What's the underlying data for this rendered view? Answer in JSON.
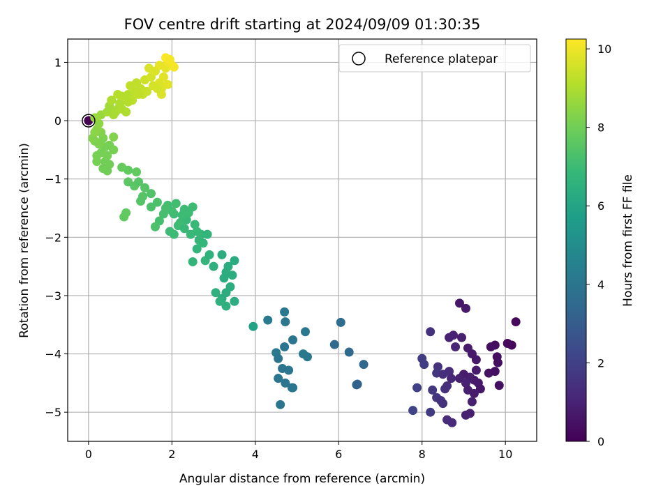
{
  "chart_data": {
    "type": "scatter",
    "title": "FOV centre drift starting at 2024/09/09 01:30:35",
    "xlabel": "Angular distance from reference (arcmin)",
    "ylabel": "Rotation from reference (arcmin)",
    "xlim": [
      -0.5,
      10.75
    ],
    "ylim": [
      -5.5,
      1.4
    ],
    "xticks": [
      0,
      2,
      4,
      6,
      8,
      10
    ],
    "yticks": [
      -5,
      -4,
      -3,
      -2,
      -1,
      0,
      1
    ],
    "grid": true,
    "legend": {
      "placement": "top-right",
      "entries": [
        "Reference platepar"
      ]
    },
    "reference_point": {
      "x": 0,
      "y": 0
    },
    "colorbar": {
      "label": "Hours from first FF file",
      "range": [
        0,
        10.25
      ],
      "ticks": [
        0,
        2,
        4,
        6,
        8,
        10
      ],
      "colormap": "viridis"
    },
    "colormap_stops": [
      "#440154",
      "#482878",
      "#3e4989",
      "#31688e",
      "#26828e",
      "#1f9e89",
      "#35b779",
      "#6ece58",
      "#b5de2b",
      "#fde725"
    ],
    "series": [
      {
        "points": [
          [
            0,
            0,
            0
          ],
          [
            8.9,
            -3.13,
            0.6
          ],
          [
            9.05,
            -3.22,
            0.7
          ],
          [
            10.25,
            -3.45,
            0.2
          ],
          [
            8.2,
            -3.62,
            1.5
          ],
          [
            8.65,
            -3.72,
            1.0
          ],
          [
            8.75,
            -3.68,
            1.0
          ],
          [
            8.95,
            -3.72,
            0.9
          ],
          [
            8.8,
            -3.88,
            1.1
          ],
          [
            9.1,
            -3.9,
            0.8
          ],
          [
            9.75,
            -3.85,
            0.3
          ],
          [
            9.65,
            -3.88,
            0.4
          ],
          [
            10.05,
            -3.82,
            0.2
          ],
          [
            10.15,
            -3.85,
            0.2
          ],
          [
            9.2,
            -4.0,
            0.7
          ],
          [
            9.8,
            -4.05,
            0.4
          ],
          [
            8.0,
            -4.08,
            1.8
          ],
          [
            8.05,
            -4.18,
            1.9
          ],
          [
            8.38,
            -4.22,
            1.5
          ],
          [
            9.3,
            -4.1,
            0.7
          ],
          [
            9.82,
            -4.15,
            0.4
          ],
          [
            8.65,
            -4.3,
            1.3
          ],
          [
            8.35,
            -4.33,
            1.6
          ],
          [
            8.5,
            -4.35,
            1.4
          ],
          [
            9.3,
            -4.28,
            0.8
          ],
          [
            9.6,
            -4.33,
            0.5
          ],
          [
            9.75,
            -4.3,
            0.4
          ],
          [
            9.15,
            -4.4,
            0.9
          ],
          [
            9.0,
            -4.35,
            0.8
          ],
          [
            8.9,
            -4.42,
            0.9
          ],
          [
            9.25,
            -4.45,
            0.8
          ],
          [
            8.7,
            -4.42,
            1.1
          ],
          [
            9.35,
            -4.5,
            0.7
          ],
          [
            9.05,
            -4.5,
            1.0
          ],
          [
            8.6,
            -4.55,
            1.4
          ],
          [
            7.88,
            -4.58,
            2.0
          ],
          [
            8.25,
            -4.62,
            1.7
          ],
          [
            8.55,
            -4.6,
            1.4
          ],
          [
            9.85,
            -4.54,
            0.4
          ],
          [
            9.4,
            -4.6,
            0.6
          ],
          [
            9.1,
            -4.62,
            0.9
          ],
          [
            9.25,
            -4.68,
            0.8
          ],
          [
            8.35,
            -4.75,
            1.6
          ],
          [
            8.45,
            -4.8,
            1.5
          ],
          [
            8.5,
            -4.85,
            1.5
          ],
          [
            9.2,
            -4.82,
            0.9
          ],
          [
            7.78,
            -4.97,
            2.1
          ],
          [
            8.2,
            -5.0,
            1.8
          ],
          [
            9.05,
            -5.05,
            0.9
          ],
          [
            9.15,
            -5.02,
            0.9
          ],
          [
            8.6,
            -5.13,
            1.3
          ],
          [
            8.72,
            -5.18,
            1.2
          ],
          [
            6.05,
            -3.46,
            3.6
          ],
          [
            5.9,
            -3.84,
            3.5
          ],
          [
            6.25,
            -3.97,
            3.5
          ],
          [
            6.6,
            -4.18,
            3.4
          ],
          [
            6.45,
            -4.52,
            3.2
          ],
          [
            6.43,
            -4.53,
            3.2
          ],
          [
            4.7,
            -3.28,
            4.1
          ],
          [
            4.3,
            -3.42,
            4.2
          ],
          [
            4.72,
            -3.45,
            4.0
          ],
          [
            5.2,
            -3.62,
            4.1
          ],
          [
            4.9,
            -3.76,
            4.0
          ],
          [
            4.7,
            -3.88,
            4.0
          ],
          [
            5.15,
            -4.0,
            4.1
          ],
          [
            4.5,
            -3.98,
            4.2
          ],
          [
            5.25,
            -4.05,
            4.1
          ],
          [
            4.55,
            -4.08,
            4.0
          ],
          [
            4.65,
            -4.25,
            4.0
          ],
          [
            4.8,
            -4.28,
            4.0
          ],
          [
            4.55,
            -4.42,
            4.0
          ],
          [
            4.72,
            -4.5,
            4.0
          ],
          [
            4.88,
            -4.58,
            4.0
          ],
          [
            4.9,
            -4.58,
            4.0
          ],
          [
            4.6,
            -4.87,
            4.0
          ],
          [
            3.95,
            -3.53,
            5.9
          ],
          [
            3.2,
            -2.3,
            6.4
          ],
          [
            3.5,
            -2.4,
            6.3
          ],
          [
            3.35,
            -2.5,
            6.3
          ],
          [
            3.3,
            -2.6,
            6.4
          ],
          [
            3.45,
            -2.65,
            6.4
          ],
          [
            3.0,
            -2.5,
            6.5
          ],
          [
            3.25,
            -2.7,
            6.4
          ],
          [
            3.4,
            -2.85,
            6.4
          ],
          [
            3.05,
            -2.95,
            6.5
          ],
          [
            3.3,
            -2.95,
            6.4
          ],
          [
            3.2,
            -3.05,
            6.4
          ],
          [
            3.15,
            -3.1,
            6.5
          ],
          [
            3.5,
            -3.1,
            6.4
          ],
          [
            3.3,
            -3.18,
            6.5
          ],
          [
            2.8,
            -2.4,
            6.7
          ],
          [
            2.6,
            -2.2,
            6.7
          ],
          [
            2.9,
            -2.3,
            6.6
          ],
          [
            2.5,
            -2.42,
            6.7
          ],
          [
            2.65,
            -2.05,
            6.8
          ],
          [
            2.7,
            -1.95,
            6.8
          ],
          [
            2.85,
            -1.95,
            6.7
          ],
          [
            2.55,
            -1.78,
            6.9
          ],
          [
            2.35,
            -1.7,
            6.9
          ],
          [
            2.2,
            -1.75,
            7.0
          ],
          [
            2.05,
            -1.6,
            7.0
          ],
          [
            2.15,
            -1.8,
            7.0
          ],
          [
            2.3,
            -1.85,
            6.9
          ],
          [
            2.45,
            -1.95,
            6.9
          ],
          [
            1.95,
            -1.9,
            7.0
          ],
          [
            2.05,
            -1.95,
            7.0
          ],
          [
            2.25,
            -1.62,
            7.0
          ],
          [
            2.5,
            -1.48,
            7.0
          ],
          [
            2.1,
            -1.42,
            7.1
          ],
          [
            1.9,
            -1.45,
            7.1
          ],
          [
            2.0,
            -1.55,
            7.1
          ],
          [
            2.3,
            -1.52,
            7.0
          ],
          [
            2.4,
            -1.58,
            7.0
          ],
          [
            2.6,
            -1.9,
            6.9
          ],
          [
            2.75,
            -2.1,
            6.8
          ],
          [
            1.8,
            -1.6,
            7.2
          ],
          [
            1.7,
            -1.72,
            7.2
          ],
          [
            1.6,
            -1.82,
            7.3
          ],
          [
            1.65,
            -1.4,
            7.3
          ],
          [
            1.5,
            -1.48,
            7.3
          ],
          [
            1.85,
            -1.5,
            7.2
          ],
          [
            1.5,
            -1.25,
            7.4
          ],
          [
            1.3,
            -1.3,
            7.5
          ],
          [
            1.25,
            -1.38,
            7.5
          ],
          [
            1.35,
            -1.15,
            7.5
          ],
          [
            1.1,
            -1.12,
            7.6
          ],
          [
            0.95,
            -1.05,
            7.6
          ],
          [
            1.2,
            -1.05,
            7.5
          ],
          [
            0.85,
            -1.65,
            7.7
          ],
          [
            0.9,
            -1.58,
            7.7
          ],
          [
            1.15,
            -0.88,
            7.7
          ],
          [
            0.95,
            -0.85,
            7.7
          ],
          [
            0.8,
            -0.8,
            7.8
          ],
          [
            0.4,
            -0.7,
            8.0
          ],
          [
            0.5,
            -0.75,
            8.0
          ],
          [
            0.35,
            -0.82,
            8.0
          ],
          [
            0.45,
            -0.86,
            8.0
          ],
          [
            0.2,
            -0.6,
            8.1
          ],
          [
            0.2,
            -0.7,
            8.1
          ],
          [
            0.3,
            -0.55,
            8.1
          ],
          [
            0.4,
            -0.45,
            8.1
          ],
          [
            0.25,
            -0.4,
            8.2
          ],
          [
            0.15,
            -0.35,
            8.2
          ],
          [
            0.35,
            -0.3,
            8.2
          ],
          [
            0.5,
            -0.42,
            8.1
          ],
          [
            0.6,
            -0.5,
            8.1
          ],
          [
            0.45,
            -0.6,
            8.1
          ],
          [
            0.3,
            -0.2,
            8.3
          ],
          [
            0.2,
            -0.15,
            8.4
          ],
          [
            0.1,
            -0.3,
            8.3
          ],
          [
            0.25,
            -0.05,
            8.5
          ],
          [
            0.15,
            -0.2,
            8.4
          ],
          [
            0.6,
            -0.28,
            8.3
          ],
          [
            0.15,
            0.05,
            8.7
          ],
          [
            0.3,
            0.1,
            8.7
          ],
          [
            0.45,
            0.15,
            8.8
          ],
          [
            0.5,
            0.25,
            8.8
          ],
          [
            0.65,
            0.15,
            8.9
          ],
          [
            0.7,
            0.2,
            8.9
          ],
          [
            0.55,
            0.35,
            9.0
          ],
          [
            0.6,
            0.1,
            8.9
          ],
          [
            0.8,
            0.2,
            9.0
          ],
          [
            0.9,
            0.15,
            9.0
          ],
          [
            0.75,
            0.3,
            9.0
          ],
          [
            0.8,
            0.42,
            9.1
          ],
          [
            0.95,
            0.45,
            9.1
          ],
          [
            0.7,
            0.45,
            9.1
          ],
          [
            1.05,
            0.35,
            9.2
          ],
          [
            1.1,
            0.5,
            9.2
          ],
          [
            1.0,
            0.6,
            9.3
          ],
          [
            1.15,
            0.65,
            9.3
          ],
          [
            1.25,
            0.55,
            9.3
          ],
          [
            1.3,
            0.45,
            9.4
          ],
          [
            1.4,
            0.5,
            9.4
          ],
          [
            1.35,
            0.7,
            9.5
          ],
          [
            1.5,
            0.75,
            9.6
          ],
          [
            1.45,
            0.9,
            9.7
          ],
          [
            1.6,
            0.85,
            9.7
          ],
          [
            1.55,
            0.6,
            9.6
          ],
          [
            1.7,
            0.65,
            9.7
          ],
          [
            1.75,
            0.55,
            9.7
          ],
          [
            1.8,
            0.75,
            9.8
          ],
          [
            1.7,
            0.95,
            9.9
          ],
          [
            1.85,
            0.9,
            9.9
          ],
          [
            1.9,
            1.0,
            10.0
          ],
          [
            2.0,
            0.95,
            10.0
          ],
          [
            2.05,
            0.92,
            10.1
          ],
          [
            1.85,
            1.08,
            10.2
          ],
          [
            1.95,
            1.05,
            10.1
          ],
          [
            1.9,
            0.62,
            9.8
          ],
          [
            1.75,
            0.45,
            9.7
          ],
          [
            1.65,
            0.55,
            9.6
          ],
          [
            1.2,
            0.45,
            9.3
          ],
          [
            0.95,
            0.32,
            9.1
          ]
        ]
      }
    ]
  }
}
